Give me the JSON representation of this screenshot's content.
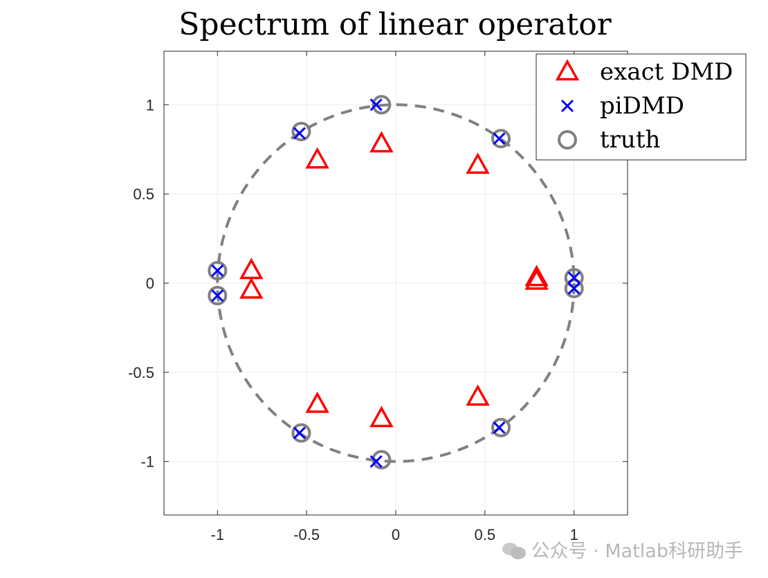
{
  "chart_data": {
    "type": "scatter",
    "title": "Spectrum of linear operator",
    "xlabel": "",
    "ylabel": "",
    "xlim": [
      -1.3,
      1.3
    ],
    "ylim": [
      -1.3,
      1.3
    ],
    "xticks": [
      -1,
      -0.5,
      0,
      0.5,
      1
    ],
    "yticks": [
      -1,
      -0.5,
      0,
      0.5,
      1
    ],
    "xtick_labels": [
      "-1",
      "-0.5",
      "0",
      "0.5",
      "1"
    ],
    "ytick_labels": [
      "-1",
      "-0.5",
      "0",
      "0.5",
      "1"
    ],
    "grid": true,
    "legend_position": "top-right",
    "reference_curve": {
      "type": "unit-circle",
      "style": "dashed",
      "color": "#808080"
    },
    "series": [
      {
        "name": "exact DMD",
        "marker": "triangle",
        "color": "#ff0000",
        "points": [
          [
            -0.08,
            0.78
          ],
          [
            -0.08,
            -0.76
          ],
          [
            -0.44,
            0.69
          ],
          [
            -0.44,
            -0.68
          ],
          [
            0.46,
            0.66
          ],
          [
            0.46,
            -0.64
          ],
          [
            -0.81,
            0.07
          ],
          [
            -0.81,
            -0.04
          ],
          [
            0.79,
            0.03
          ],
          [
            0.79,
            0.01
          ]
        ]
      },
      {
        "name": "piDMD",
        "marker": "x",
        "color": "#0000ff",
        "points": [
          [
            -0.11,
            1.0
          ],
          [
            -0.11,
            -1.0
          ],
          [
            -0.54,
            0.84
          ],
          [
            -0.54,
            -0.84
          ],
          [
            0.58,
            0.81
          ],
          [
            0.58,
            -0.81
          ],
          [
            -1.0,
            0.07
          ],
          [
            -1.0,
            -0.07
          ],
          [
            1.0,
            0.03
          ],
          [
            1.0,
            -0.03
          ]
        ]
      },
      {
        "name": "truth",
        "marker": "circle",
        "color": "#808080",
        "points": [
          [
            -0.08,
            1.0
          ],
          [
            -0.08,
            -0.99
          ],
          [
            -0.53,
            0.85
          ],
          [
            -0.53,
            -0.84
          ],
          [
            0.59,
            0.81
          ],
          [
            0.59,
            -0.81
          ],
          [
            -1.0,
            0.07
          ],
          [
            -1.0,
            -0.07
          ],
          [
            1.0,
            0.03
          ],
          [
            1.0,
            -0.03
          ]
        ]
      }
    ]
  },
  "watermark": {
    "text": "公众号 · Matlab科研助手"
  }
}
